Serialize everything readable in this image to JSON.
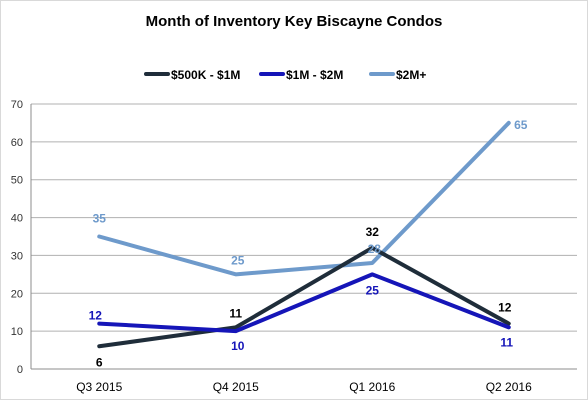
{
  "chart_data": {
    "type": "line",
    "title": "Month of Inventory Key Biscayne Condos",
    "categories": [
      "Q3 2015",
      "Q4 2015",
      "Q1 2016",
      "Q2 2016"
    ],
    "series": [
      {
        "name": "$500K - $1M",
        "values": [
          6,
          11,
          32,
          12
        ],
        "color": "#1f2d3a",
        "label_color": "#000000"
      },
      {
        "name": "$1M - $2M",
        "values": [
          12,
          10,
          25,
          11
        ],
        "color": "#1515b8",
        "label_color": "#1515b8"
      },
      {
        "name": "$2M+",
        "values": [
          35,
          25,
          28,
          65
        ],
        "color": "#6e9acb",
        "label_color": "#6e9acb"
      }
    ],
    "ylim": [
      0,
      70
    ],
    "yticks": [
      0,
      10,
      20,
      30,
      40,
      50,
      60,
      70
    ],
    "grid": true,
    "legend_position": "top"
  }
}
